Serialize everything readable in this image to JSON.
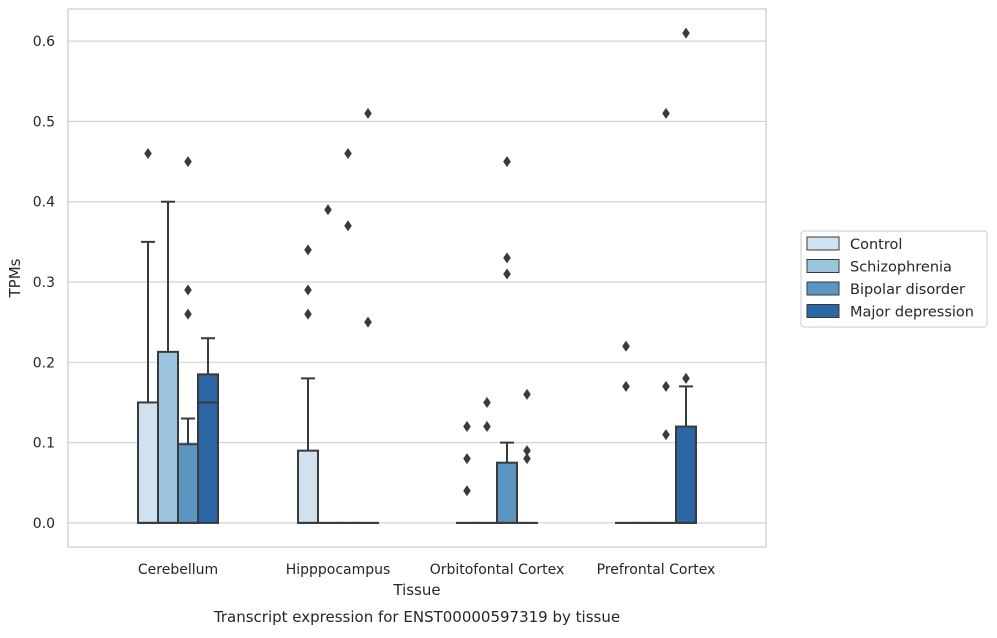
{
  "chart_data": {
    "type": "box",
    "title": "",
    "caption": "Transcript expression for ENST00000597319 by tissue",
    "xlabel": "Tissue",
    "ylabel": "TPMs",
    "ylim": [
      -0.03,
      0.64
    ],
    "yticks": [
      0.0,
      0.1,
      0.2,
      0.3,
      0.4,
      0.5,
      0.6
    ],
    "ytick_labels": [
      "0.0",
      "0.1",
      "0.2",
      "0.3",
      "0.4",
      "0.5",
      "0.6"
    ],
    "grid": true,
    "legend_position": "right",
    "categories": [
      "Cerebellum",
      "Hipppocampus",
      "Orbitofontal Cortex",
      "Prefrontal Cortex"
    ],
    "series": [
      {
        "name": "Control",
        "color": "#d0e1f0",
        "boxes": [
          {
            "q1": 0.0,
            "median": 0.0,
            "q3": 0.15,
            "whisker_low": 0.0,
            "whisker_high": 0.35,
            "outliers": [
              0.46
            ]
          },
          {
            "q1": 0.0,
            "median": 0.0,
            "q3": 0.09,
            "whisker_low": 0.0,
            "whisker_high": 0.18,
            "outliers": [
              0.26,
              0.29,
              0.34
            ]
          },
          {
            "q1": 0.0,
            "median": 0.0,
            "q3": 0.0,
            "whisker_low": 0.0,
            "whisker_high": 0.0,
            "outliers": [
              0.04,
              0.08,
              0.12
            ]
          },
          {
            "q1": 0.0,
            "median": 0.0,
            "q3": 0.0,
            "whisker_low": 0.0,
            "whisker_high": 0.0,
            "outliers": [
              0.17,
              0.22
            ]
          }
        ]
      },
      {
        "name": "Schizophrenia",
        "color": "#9dc4de",
        "boxes": [
          {
            "q1": 0.0,
            "median": 0.0,
            "q3": 0.213,
            "whisker_low": 0.0,
            "whisker_high": 0.4,
            "outliers": []
          },
          {
            "q1": 0.0,
            "median": 0.0,
            "q3": 0.0,
            "whisker_low": 0.0,
            "whisker_high": 0.0,
            "outliers": [
              0.39
            ]
          },
          {
            "q1": 0.0,
            "median": 0.0,
            "q3": 0.0,
            "whisker_low": 0.0,
            "whisker_high": 0.0,
            "outliers": [
              0.12,
              0.15
            ]
          },
          {
            "q1": 0.0,
            "median": 0.0,
            "q3": 0.0,
            "whisker_low": 0.0,
            "whisker_high": 0.0,
            "outliers": []
          }
        ]
      },
      {
        "name": "Bipolar disorder",
        "color": "#5b96c2",
        "boxes": [
          {
            "q1": 0.0,
            "median": 0.0,
            "q3": 0.098,
            "whisker_low": 0.0,
            "whisker_high": 0.13,
            "outliers": [
              0.26,
              0.29,
              0.45
            ]
          },
          {
            "q1": 0.0,
            "median": 0.0,
            "q3": 0.0,
            "whisker_low": 0.0,
            "whisker_high": 0.0,
            "outliers": [
              0.37,
              0.46
            ]
          },
          {
            "q1": 0.0,
            "median": 0.0,
            "q3": 0.075,
            "whisker_low": 0.0,
            "whisker_high": 0.1,
            "outliers": [
              0.31,
              0.33,
              0.45
            ]
          },
          {
            "q1": 0.0,
            "median": 0.0,
            "q3": 0.0,
            "whisker_low": 0.0,
            "whisker_high": 0.0,
            "outliers": [
              0.11,
              0.17,
              0.51
            ]
          }
        ]
      },
      {
        "name": "Major depression",
        "color": "#2b66a5",
        "boxes": [
          {
            "q1": 0.0,
            "median": 0.15,
            "q3": 0.185,
            "whisker_low": 0.0,
            "whisker_high": 0.23,
            "outliers": []
          },
          {
            "q1": 0.0,
            "median": 0.0,
            "q3": 0.0,
            "whisker_low": 0.0,
            "whisker_high": 0.0,
            "outliers": [
              0.25,
              0.51
            ]
          },
          {
            "q1": 0.0,
            "median": 0.0,
            "q3": 0.0,
            "whisker_low": 0.0,
            "whisker_high": 0.0,
            "outliers": [
              0.08,
              0.09,
              0.16
            ]
          },
          {
            "q1": 0.0,
            "median": 0.0,
            "q3": 0.12,
            "whisker_low": 0.0,
            "whisker_high": 0.17,
            "outliers": [
              0.18,
              0.61
            ]
          }
        ]
      }
    ]
  }
}
